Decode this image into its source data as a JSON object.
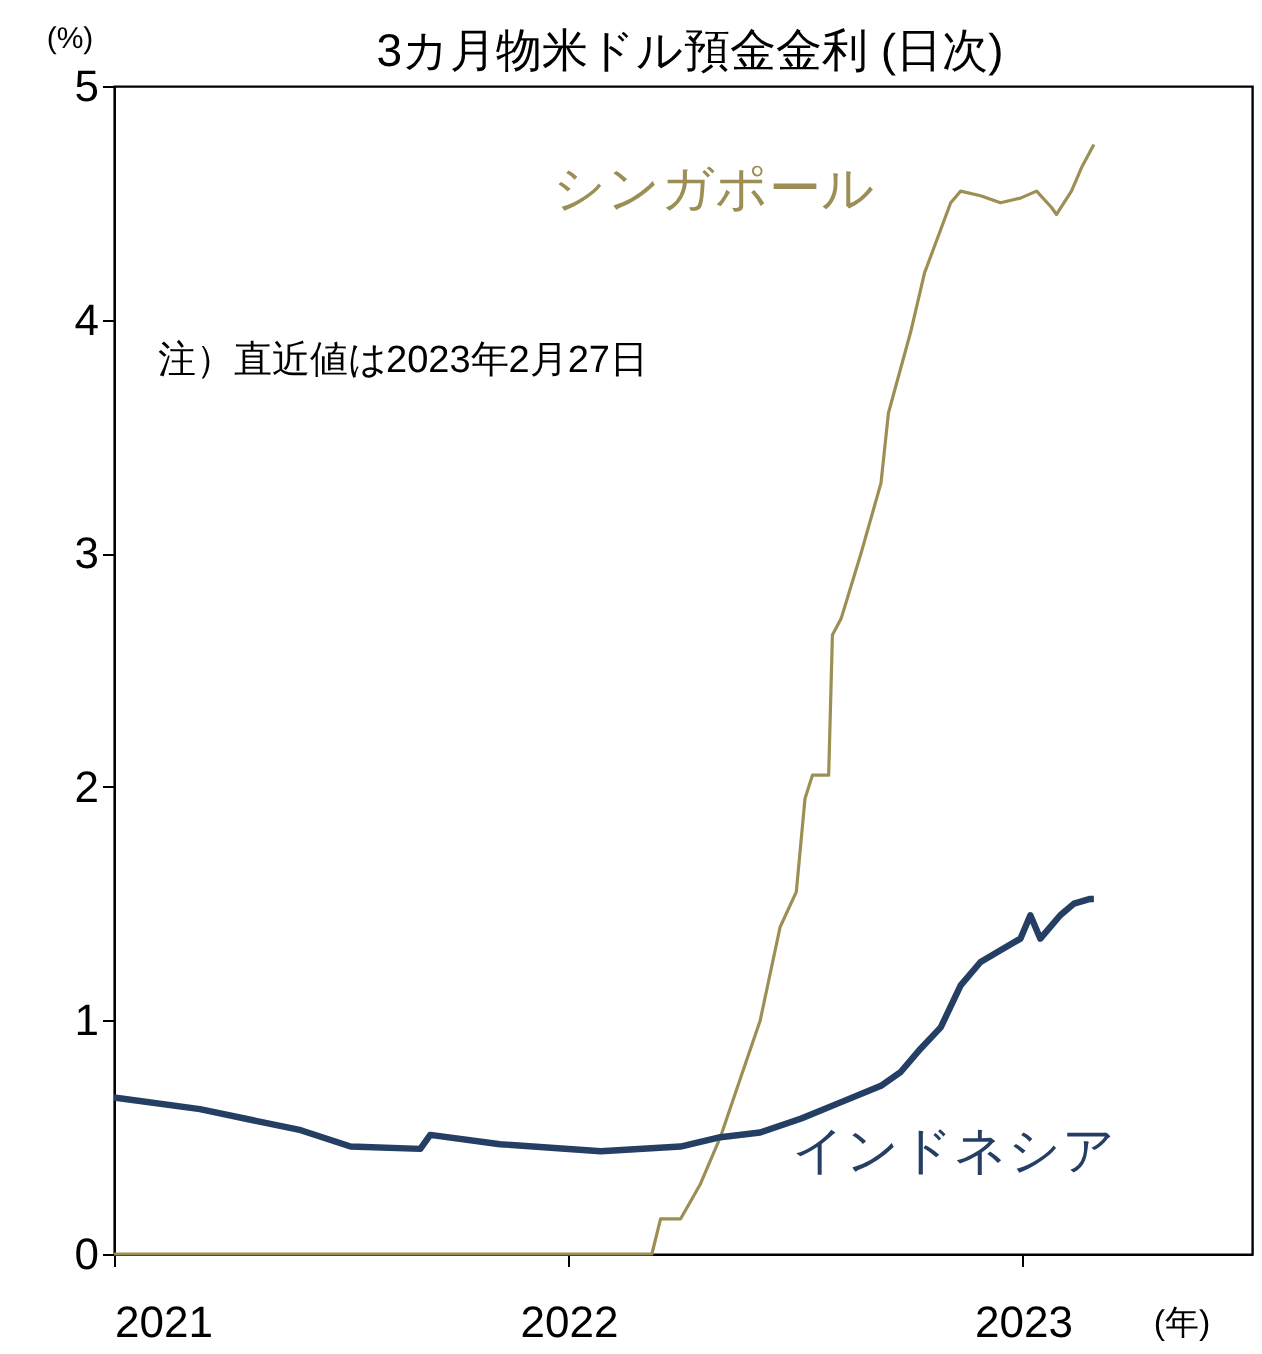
{
  "chart_data": {
    "type": "line",
    "title": "3カ月物米ドル預金金利 (日次)",
    "ylabel": "(%)",
    "xlabel": "(年)",
    "annotations": [
      "注）直近値は2023年2月27日"
    ],
    "xlim": [
      "2021-01-01",
      "2023-07-04"
    ],
    "xticks": [
      {
        "value": "2021-01-01",
        "label": "2021"
      },
      {
        "value": "2022-01-01",
        "label": "2022"
      },
      {
        "value": "2023-01-01",
        "label": "2023"
      }
    ],
    "ylim": [
      0,
      5
    ],
    "yticks": [
      0,
      1,
      2,
      3,
      4,
      5
    ],
    "grid": false,
    "legend": false,
    "marker": "none",
    "line_style": "solid",
    "series": [
      {
        "name": "シンガポール",
        "color": "#9c8f55",
        "x": [
          "2021-01-01",
          "2022-03-09",
          "2022-03-16",
          "2022-04-01",
          "2022-04-17",
          "2022-05-03",
          "2022-05-19",
          "2022-06-04",
          "2022-06-20",
          "2022-07-03",
          "2022-07-10",
          "2022-07-16",
          "2022-07-29",
          "2022-08-01",
          "2022-08-08",
          "2022-08-24",
          "2022-09-09",
          "2022-09-15",
          "2022-10-03",
          "2022-10-14",
          "2022-10-21",
          "2022-11-04",
          "2022-11-12",
          "2022-11-28",
          "2022-12-14",
          "2022-12-30",
          "2023-01-12",
          "2023-01-24",
          "2023-01-28",
          "2023-02-09",
          "2023-02-17",
          "2023-02-27"
        ],
        "values": [
          0,
          0,
          0.15,
          0.15,
          0.3,
          0.5,
          0.75,
          1.0,
          1.4,
          1.55,
          1.95,
          2.05,
          2.05,
          2.65,
          2.72,
          3.0,
          3.3,
          3.6,
          3.95,
          4.2,
          4.3,
          4.5,
          4.55,
          4.53,
          4.5,
          4.52,
          4.55,
          4.48,
          4.45,
          4.55,
          4.65,
          4.75
        ]
      },
      {
        "name": "インドネシア",
        "color": "#243f63",
        "x": [
          "2021-01-01",
          "2021-03-11",
          "2021-05-31",
          "2021-07-10",
          "2021-09-04",
          "2021-09-12",
          "2021-11-07",
          "2022-01-27",
          "2022-04-01",
          "2022-05-03",
          "2022-06-04",
          "2022-07-07",
          "2022-08-08",
          "2022-09-09",
          "2022-09-25",
          "2022-10-11",
          "2022-10-27",
          "2022-11-12",
          "2022-11-28",
          "2022-12-14",
          "2022-12-30",
          "2023-01-07",
          "2023-01-15",
          "2023-01-31",
          "2023-02-11",
          "2023-02-24",
          "2023-02-27"
        ],
        "values": [
          0.67,
          0.62,
          0.53,
          0.46,
          0.45,
          0.51,
          0.47,
          0.44,
          0.46,
          0.5,
          0.52,
          0.58,
          0.65,
          0.72,
          0.78,
          0.88,
          0.97,
          1.15,
          1.25,
          1.3,
          1.35,
          1.45,
          1.35,
          1.45,
          1.5,
          1.52,
          1.52
        ]
      }
    ]
  }
}
